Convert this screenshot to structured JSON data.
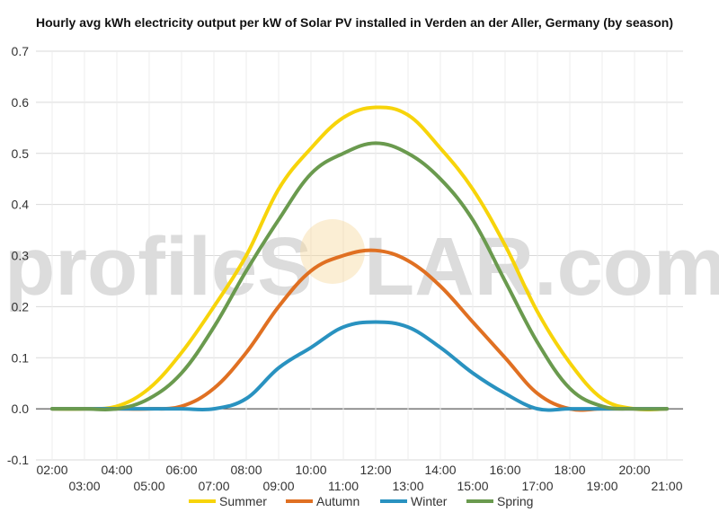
{
  "watermark": {
    "left_text": "profileS",
    "right_text": "LAR.com"
  },
  "chart_data": {
    "type": "line",
    "title": "Hourly avg kWh electricity output per kW of Solar PV installed in Verden an der Aller, Germany (by season)",
    "xlabel": "",
    "ylabel": "",
    "ylim": [
      -0.1,
      0.7
    ],
    "yticks": [
      -0.1,
      0.0,
      0.1,
      0.2,
      0.3,
      0.4,
      0.5,
      0.6,
      0.7
    ],
    "xlim": [
      1.5,
      21.5
    ],
    "grid": true,
    "legend_position": "bottom",
    "x": [
      2,
      3,
      4,
      5,
      6,
      7,
      8,
      9,
      10,
      11,
      12,
      13,
      14,
      15,
      16,
      17,
      18,
      19,
      20,
      21
    ],
    "x_tick_labels": [
      "02:00",
      "03:00",
      "04:00",
      "05:00",
      "06:00",
      "07:00",
      "08:00",
      "09:00",
      "10:00",
      "11:00",
      "12:00",
      "13:00",
      "14:00",
      "15:00",
      "16:00",
      "17:00",
      "18:00",
      "19:00",
      "20:00",
      "21:00"
    ],
    "series": [
      {
        "name": "Summer",
        "color": "#f7d40a",
        "values": [
          0.0,
          0.0,
          0.005,
          0.04,
          0.11,
          0.2,
          0.3,
          0.43,
          0.51,
          0.57,
          0.59,
          0.575,
          0.51,
          0.43,
          0.32,
          0.19,
          0.09,
          0.02,
          0.0,
          0.0
        ]
      },
      {
        "name": "Autumn",
        "color": "#e07022",
        "values": [
          0.0,
          0.0,
          0.0,
          0.0,
          0.005,
          0.04,
          0.11,
          0.2,
          0.27,
          0.3,
          0.31,
          0.29,
          0.24,
          0.17,
          0.1,
          0.03,
          0.0,
          0.0,
          0.0,
          0.0
        ]
      },
      {
        "name": "Winter",
        "color": "#2992c0",
        "values": [
          0.0,
          0.0,
          0.0,
          0.0,
          0.0,
          0.0,
          0.02,
          0.08,
          0.12,
          0.16,
          0.17,
          0.16,
          0.12,
          0.07,
          0.03,
          0.0,
          0.0,
          0.0,
          0.0,
          0.0
        ]
      },
      {
        "name": "Spring",
        "color": "#6a9a4e",
        "values": [
          0.0,
          0.0,
          0.0,
          0.02,
          0.07,
          0.16,
          0.27,
          0.37,
          0.46,
          0.5,
          0.52,
          0.5,
          0.45,
          0.37,
          0.25,
          0.13,
          0.04,
          0.005,
          0.0,
          0.0
        ]
      }
    ]
  }
}
